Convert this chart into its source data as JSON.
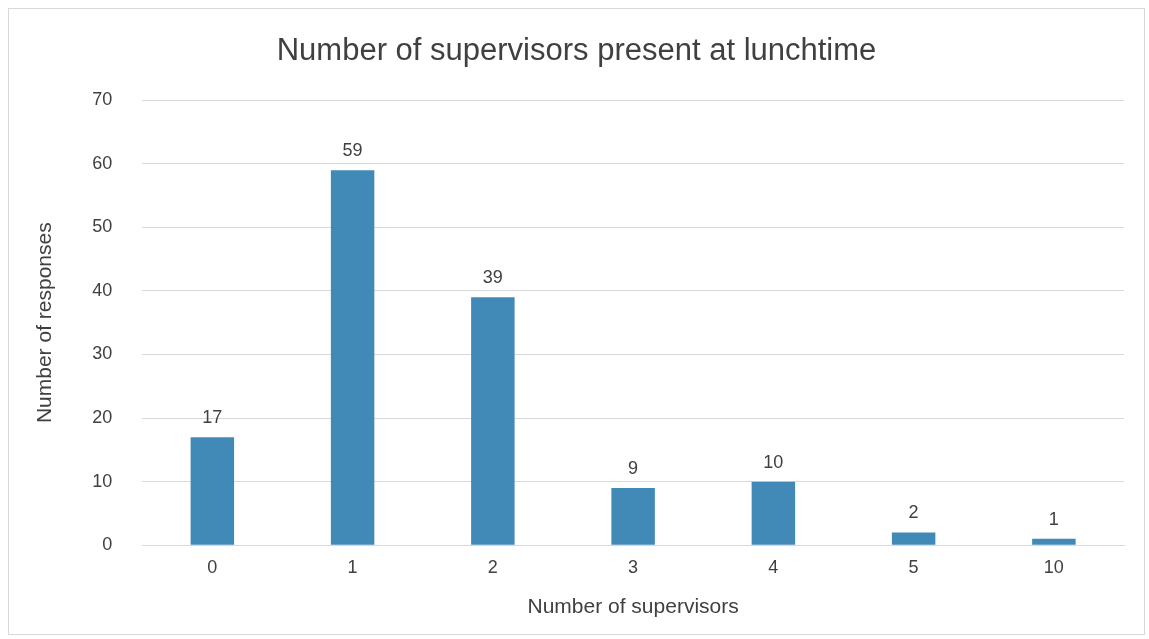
{
  "chart_data": {
    "type": "bar",
    "title": "Number of supervisors present at lunchtime",
    "xlabel": "Number of supervisors",
    "ylabel": "Number of responses",
    "categories": [
      "0",
      "1",
      "2",
      "3",
      "4",
      "5",
      "10"
    ],
    "values": [
      17,
      59,
      39,
      9,
      10,
      2,
      1
    ],
    "color": "#418ab8",
    "ylim": [
      0,
      70
    ],
    "yticks": [
      0,
      10,
      20,
      30,
      40,
      50,
      60,
      70
    ],
    "grid": "y",
    "data_labels": true
  }
}
